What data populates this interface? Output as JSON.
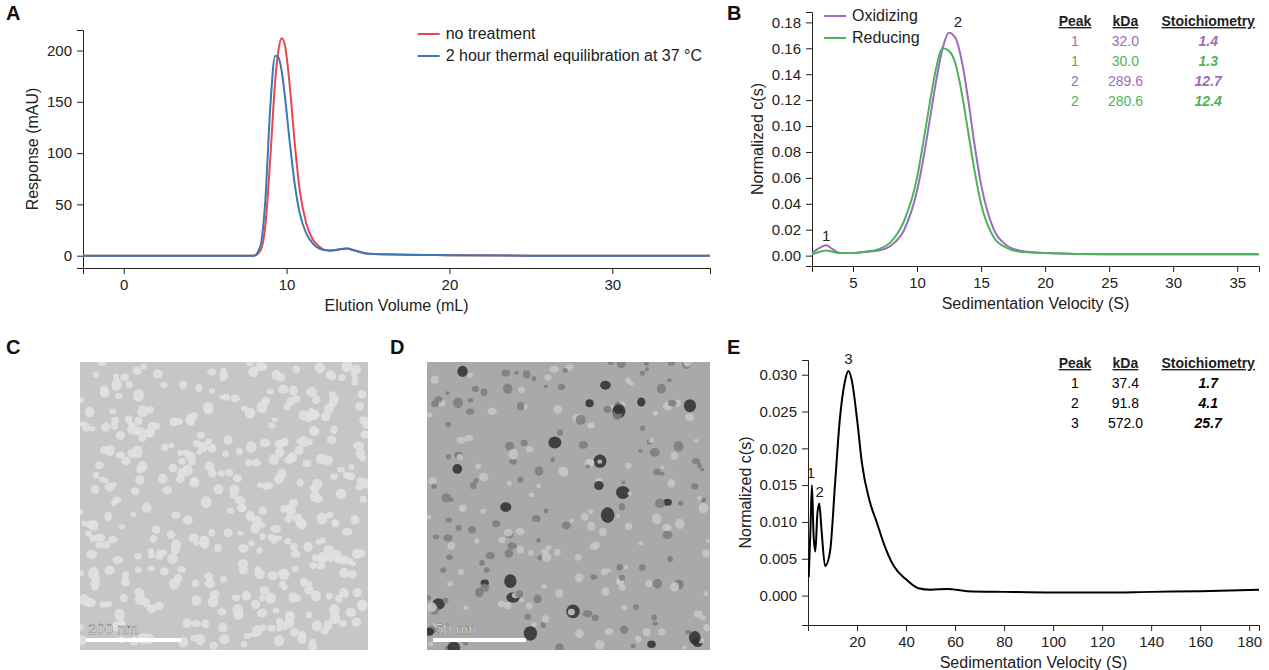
{
  "chart_data": [
    {
      "label": "A",
      "type": "line",
      "x_label": "Elution Volume (mL)",
      "y_label": "Response (mAU)",
      "xlim": [
        -2.5,
        36
      ],
      "xticks": [
        0,
        10,
        20,
        30
      ],
      "ylim": [
        -12,
        220
      ],
      "yticks": [
        0,
        50,
        100,
        150,
        200
      ],
      "legend": "upper right",
      "x": [
        -2.5,
        0,
        5,
        8,
        8.4,
        8.7,
        9.0,
        9.3,
        9.5,
        9.7,
        9.9,
        10.2,
        10.5,
        10.8,
        11.2,
        11.6,
        12.0,
        12.6,
        13.2,
        13.7,
        14.2,
        15,
        20,
        25,
        30,
        36
      ],
      "series": [
        {
          "name": "no treatment",
          "color": "#e8474f",
          "values": [
            0,
            0,
            0,
            0,
            5,
            30,
            95,
            170,
            200,
            212,
            205,
            165,
            110,
            65,
            32,
            16,
            9,
            5,
            6,
            7,
            5,
            2,
            0.5,
            0,
            0,
            0
          ]
        },
        {
          "name": "2 hour thermal equilibration at 37 °C",
          "color": "#3b78b4",
          "values": [
            0,
            0,
            0,
            0,
            10,
            55,
            145,
            195,
            193,
            180,
            155,
            110,
            70,
            42,
            22,
            12,
            7,
            5,
            6,
            7,
            5,
            2,
            0.5,
            0,
            0,
            0
          ]
        }
      ]
    },
    {
      "label": "B",
      "type": "line",
      "x_label": "Sedimentation Velocity (S)",
      "y_label": "Normalized c(s)",
      "xlim": [
        1.8,
        36.7
      ],
      "xticks": [
        5,
        10,
        15,
        20,
        25,
        30,
        35
      ],
      "ylim": [
        -0.008,
        0.188
      ],
      "yticks": [
        {
          "value": 0,
          "label": "0.00"
        },
        {
          "value": 0.02,
          "label": "0.02"
        },
        {
          "value": 0.04,
          "label": "0.04"
        },
        {
          "value": 0.06,
          "label": "0.06"
        },
        {
          "value": 0.08,
          "label": "0.08"
        },
        {
          "value": 0.1,
          "label": "0.10"
        },
        {
          "value": 0.12,
          "label": "0.12"
        },
        {
          "value": 0.14,
          "label": "0.14"
        },
        {
          "value": 0.16,
          "label": "0.16"
        },
        {
          "value": 0.18,
          "label": "0.18"
        }
      ],
      "legend": "upper left",
      "x": [
        1.8,
        2.4,
        2.9,
        3.4,
        4,
        5,
        6,
        7,
        8,
        9,
        10,
        10.5,
        11,
        11.5,
        12,
        12.5,
        13,
        13.5,
        14,
        14.5,
        15,
        16,
        17,
        18,
        20,
        25,
        30,
        36.7
      ],
      "series": [
        {
          "name": "Oxidizing",
          "color": "#9b6cbc",
          "values": [
            0.002,
            0.006,
            0.008,
            0.005,
            0.002,
            0.002,
            0.003,
            0.004,
            0.008,
            0.02,
            0.05,
            0.075,
            0.105,
            0.135,
            0.16,
            0.172,
            0.168,
            0.15,
            0.12,
            0.085,
            0.055,
            0.02,
            0.008,
            0.004,
            0.002,
            0.001,
            0.001,
            0.001
          ]
        },
        {
          "name": "Reducing",
          "color": "#4db35a",
          "values": [
            0.001,
            0.003,
            0.004,
            0.003,
            0.002,
            0.002,
            0.003,
            0.005,
            0.011,
            0.027,
            0.06,
            0.088,
            0.118,
            0.145,
            0.16,
            0.158,
            0.148,
            0.125,
            0.095,
            0.065,
            0.04,
            0.014,
            0.006,
            0.003,
            0.002,
            0.001,
            0.001,
            0.001
          ]
        }
      ],
      "annotations": [
        {
          "text": "1",
          "x": 2.9,
          "y": 0.009
        },
        {
          "text": "2",
          "x": 13.2,
          "y": 0.174
        }
      ],
      "table": {
        "columns": [
          "Peak",
          "kDa",
          "Stoichiometry"
        ],
        "rows": [
          [
            "1",
            "32.0",
            "1.4"
          ],
          [
            "1",
            "30.0",
            "1.3"
          ],
          [
            "2",
            "289.6",
            "12.7"
          ],
          [
            "2",
            "280.6",
            "12.4"
          ]
        ],
        "row_colors": [
          "#9b6cbc",
          "#4db35a",
          "#9b6cbc",
          "#4db35a"
        ]
      }
    },
    {
      "label": "E",
      "type": "line",
      "x_label": "Sedimentation Velocity (S)",
      "y_label": "Normalized c(s)",
      "xlim": [
        0,
        184
      ],
      "xticks": [
        20,
        40,
        60,
        80,
        100,
        120,
        140,
        160,
        180
      ],
      "ylim": [
        -0.004,
        0.032
      ],
      "yticks": [
        {
          "value": 0,
          "label": "0.000"
        },
        {
          "value": 0.005,
          "label": "0.005"
        },
        {
          "value": 0.01,
          "label": "0.010"
        },
        {
          "value": 0.015,
          "label": "0.015"
        },
        {
          "value": 0.02,
          "label": "0.020"
        },
        {
          "value": 0.025,
          "label": "0.025"
        },
        {
          "value": 0.03,
          "label": "0.030"
        }
      ],
      "x": [
        0.3,
        1,
        1.6,
        2.3,
        3,
        3.8,
        4.6,
        5.5,
        7,
        9,
        11,
        13,
        15,
        16.5,
        18,
        20,
        22,
        25,
        28,
        31,
        35,
        40,
        45,
        50,
        57,
        65,
        80,
        100,
        120,
        140,
        160,
        184
      ],
      "series": [
        {
          "color": "#000000",
          "values": [
            0.0025,
            0.009,
            0.015,
            0.008,
            0.006,
            0.011,
            0.0125,
            0.009,
            0.004,
            0.006,
            0.015,
            0.024,
            0.029,
            0.0305,
            0.029,
            0.024,
            0.018,
            0.013,
            0.01,
            0.007,
            0.004,
            0.0022,
            0.001,
            0.0008,
            0.0009,
            0.0006,
            0.0005,
            0.0004,
            0.0004,
            0.0005,
            0.0006,
            0.0008
          ]
        }
      ],
      "annotations": [
        {
          "text": "1",
          "x": 1.2,
          "y": 0.0155
        },
        {
          "text": "2",
          "x": 4.8,
          "y": 0.013
        },
        {
          "text": "3",
          "x": 16.5,
          "y": 0.031
        }
      ],
      "table": {
        "columns": [
          "Peak",
          "kDa",
          "Stoichiometry"
        ],
        "rows": [
          [
            "1",
            "37.4",
            "1.7"
          ],
          [
            "2",
            "91.8",
            "4.1"
          ],
          [
            "3",
            "572.0",
            "25.7"
          ]
        ],
        "row_colors": [
          "#000000",
          "#000000",
          "#000000"
        ]
      }
    }
  ],
  "images": [
    {
      "label": "C",
      "scale_bar": "200 nm"
    },
    {
      "label": "D",
      "scale_bar": "50 nm"
    }
  ]
}
